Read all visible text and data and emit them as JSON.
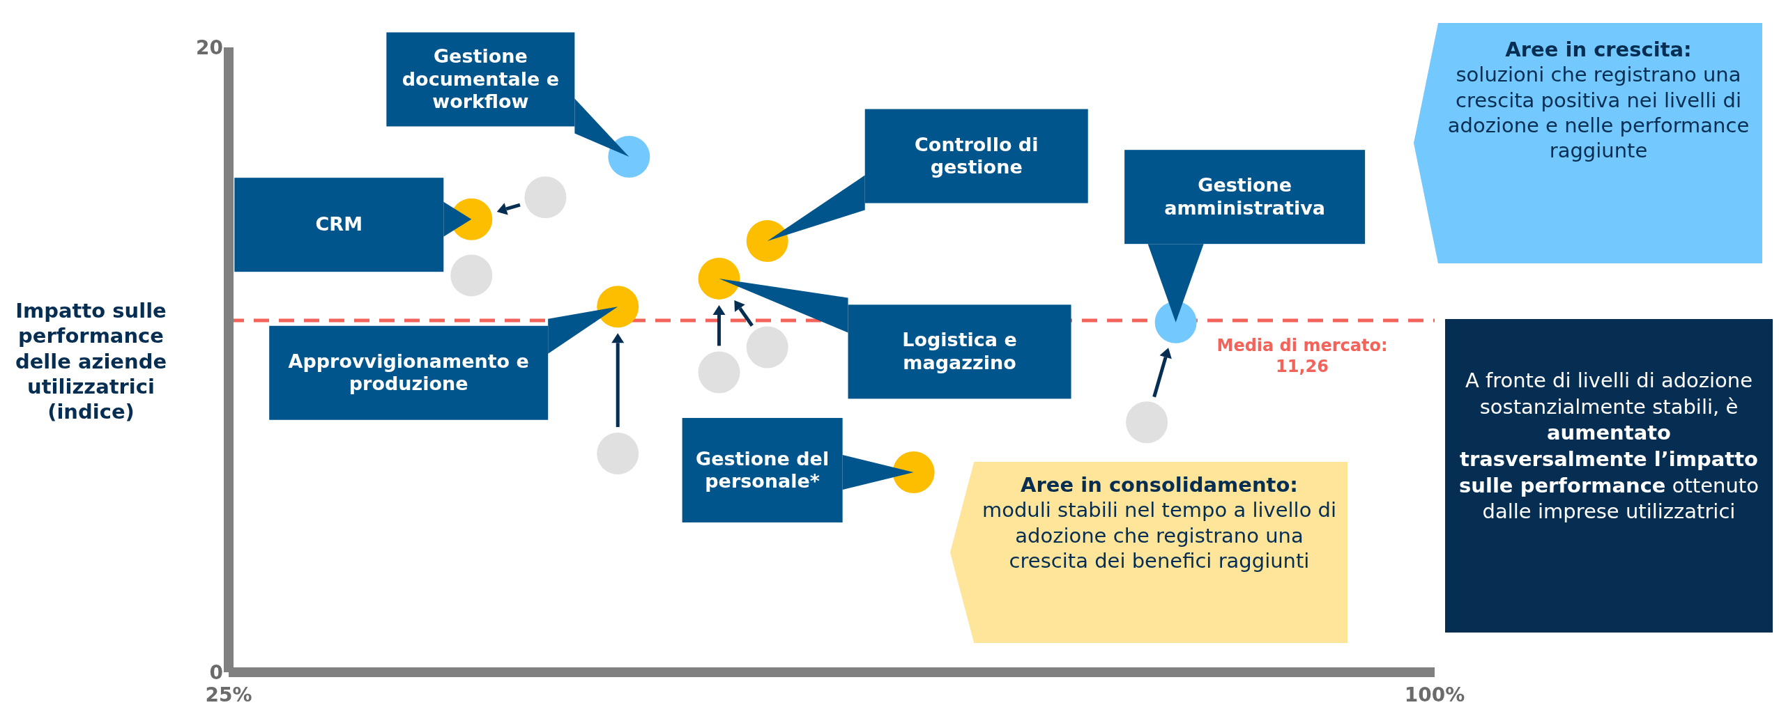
{
  "chart_data": {
    "type": "scatter",
    "ylabel": "Impatto sulle performance delle aziende utilizzatrici (indice)",
    "xlim": [
      25,
      100
    ],
    "xticks": [
      {
        "value": 25,
        "label": "25%"
      },
      {
        "value": 100,
        "label": "100%"
      }
    ],
    "ylim": [
      0,
      20
    ],
    "yticks": [
      0,
      20
    ],
    "grid": false,
    "legend": false,
    "marker": "circle",
    "series": [
      {
        "color": "#e0e0e0",
        "x": [
          44.7,
          40.1,
          49.2,
          55.5,
          58.5,
          82.1
        ],
        "values": [
          15.2,
          12.7,
          7.0,
          9.6,
          10.4,
          8.0
        ]
      },
      {
        "color": "#fdbe00",
        "x": [
          40.1,
          49.2,
          55.5,
          58.5,
          67.6
        ],
        "values": [
          14.5,
          11.7,
          12.6,
          13.8,
          6.4
        ]
      },
      {
        "color": "#73c9fd",
        "x": [
          49.9,
          83.9
        ],
        "values": [
          16.5,
          11.2
        ]
      }
    ],
    "ref_lines": [
      {
        "axis": "y",
        "value": 11.26,
        "label": "Media di mercato: 11,26",
        "color": "#f4635a",
        "line_style": "dashed"
      }
    ],
    "annotations": [
      "Gestione documentale e workflow",
      "CRM",
      "Approvvigionamento e produzione",
      "Logistica e magazzino",
      "Controllo di gestione",
      "Gestione amministrativa",
      "Gestione del personale*",
      "Aree in crescita:",
      "soluzioni che registrano una crescita positiva nei livelli di adozione e nelle performance raggiunte",
      "Aree in consolidamento:",
      "moduli stabili nel tempo a livello di adozione che registrano una crescita dei benefici raggiunti",
      "A fronte di livelli di adozione sostanzialmente stabili, è ",
      "aumentato trasversalmente l’impatto sulle performance",
      " ottenuto dalle imprese utilizzatrici"
    ]
  }
}
